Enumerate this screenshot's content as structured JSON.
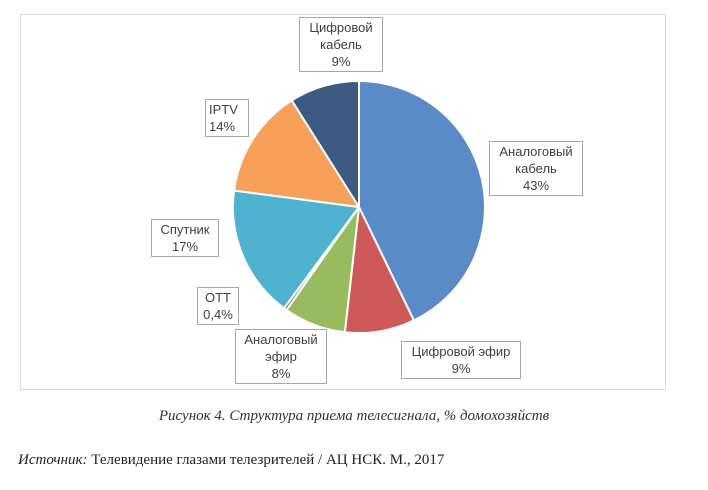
{
  "chart_data": {
    "type": "pie",
    "slices": [
      {
        "id": "analog-cable",
        "label_lines": [
          "Аналоговый",
          "кабель"
        ],
        "pct_text": "43%",
        "value": 43,
        "color": "#5b8bc6"
      },
      {
        "id": "digital-ether",
        "label_lines": [
          "Цифровой эфир"
        ],
        "pct_text": "9%",
        "value": 9,
        "color": "#cd5a58"
      },
      {
        "id": "analog-ether",
        "label_lines": [
          "Аналоговый",
          "эфир"
        ],
        "pct_text": "8%",
        "value": 8,
        "color": "#98bb5e"
      },
      {
        "id": "ott",
        "label_lines": [
          "OTT"
        ],
        "pct_text": "0,4%",
        "value": 0.4,
        "color": "#7f63a3"
      },
      {
        "id": "satellite",
        "label_lines": [
          "Спутник"
        ],
        "pct_text": "17%",
        "value": 17,
        "color": "#4fb3cf"
      },
      {
        "id": "iptv",
        "label_lines": [
          "IPTV"
        ],
        "pct_text": "14%",
        "value": 14,
        "color": "#f6a05a"
      },
      {
        "id": "digital-cable",
        "label_lines": [
          "Цифровой",
          "кабель"
        ],
        "pct_text": "9%",
        "value": 9,
        "color": "#3d5a80"
      }
    ],
    "start": "12 o'clock",
    "direction": "clockwise",
    "legend": "none",
    "data_labels": "callout boxes"
  },
  "caption": "Рисунок 4. Структура приема телесигнала, % домохозяйств",
  "source": {
    "label": "Источник:",
    "text": "Телевидение глазами телезрителей / АЦ НСК. М., 2017"
  }
}
